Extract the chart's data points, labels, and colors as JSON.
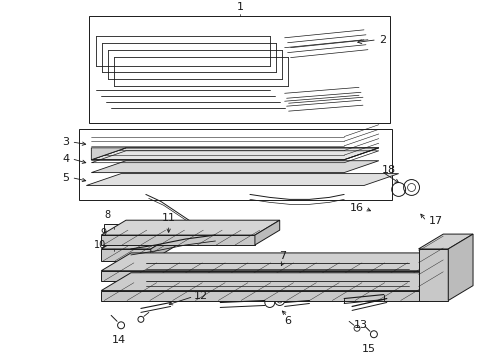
{
  "bg_color": "#ffffff",
  "line_color": "#1a1a1a",
  "label_color": "#000000",
  "lw": 0.7,
  "lw_thick": 1.0
}
